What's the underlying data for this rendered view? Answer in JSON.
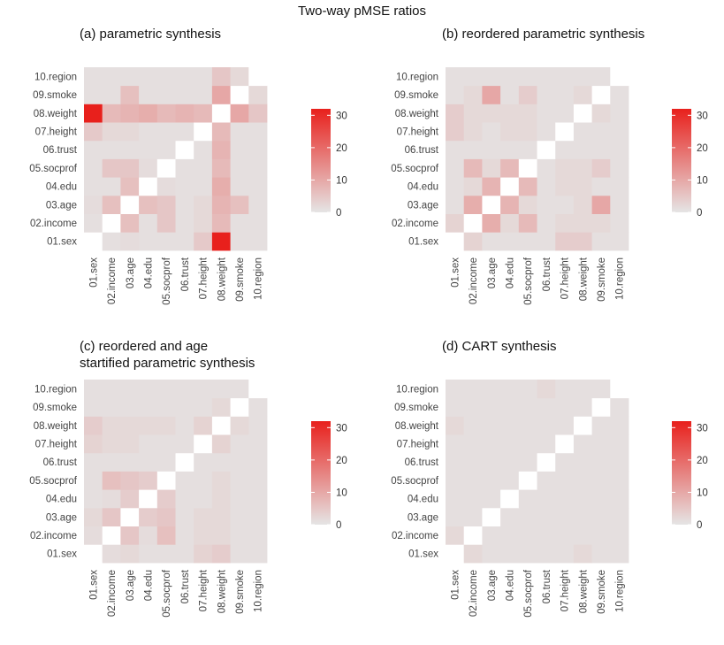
{
  "title": "Two-way pMSE ratios",
  "legend": {
    "ticks": [
      0,
      10,
      20,
      30
    ],
    "min": 0,
    "max": 32
  },
  "colors": {
    "low": "#e5e5e5",
    "high": "#e8201c",
    "diagonal": "#ffffff"
  },
  "chart_data": [
    {
      "type": "heatmap",
      "title": "(a) parametric synthesis",
      "variables": [
        "01.sex",
        "02.income",
        "03.age",
        "04.edu",
        "05.socprof",
        "06.trust",
        "07.height",
        "08.weight",
        "09.smoke",
        "10.region"
      ],
      "values": [
        [
          null,
          1,
          1.5,
          1,
          1,
          1,
          4.5,
          32,
          1,
          1
        ],
        [
          1,
          null,
          6,
          1,
          5,
          1,
          2,
          7,
          1,
          1
        ],
        [
          1.5,
          6,
          null,
          6,
          5,
          1,
          2,
          8,
          6,
          1
        ],
        [
          1,
          1,
          6,
          null,
          1.5,
          1,
          1,
          9,
          1,
          1
        ],
        [
          1,
          5,
          5,
          1.5,
          null,
          1,
          1,
          7,
          1,
          1
        ],
        [
          1,
          1,
          1,
          1,
          1,
          null,
          1,
          8,
          1,
          1
        ],
        [
          4.5,
          2,
          2,
          1,
          1,
          1,
          null,
          7,
          1,
          1
        ],
        [
          32,
          7,
          8,
          9,
          7,
          8,
          7,
          null,
          10,
          5
        ],
        [
          1,
          1,
          6,
          1,
          1,
          1,
          1,
          10,
          null,
          2
        ],
        [
          1,
          1,
          1,
          1,
          1,
          1,
          1,
          5,
          2,
          null
        ]
      ],
      "legend_title": ""
    },
    {
      "type": "heatmap",
      "title": "(b) reordered parametric synthesis",
      "variables": [
        "01.sex",
        "02.income",
        "03.age",
        "04.edu",
        "05.socprof",
        "06.trust",
        "07.height",
        "08.weight",
        "09.smoke",
        "10.region"
      ],
      "values": [
        [
          null,
          3,
          1,
          1,
          1,
          1,
          4,
          4,
          1,
          1
        ],
        [
          3,
          null,
          9,
          2,
          7,
          1,
          2,
          2,
          2,
          1
        ],
        [
          1,
          9,
          null,
          8,
          2,
          1,
          1,
          2,
          10,
          1
        ],
        [
          1,
          2,
          8,
          null,
          7,
          1,
          2,
          2,
          1,
          1
        ],
        [
          1,
          7,
          2,
          7,
          null,
          1,
          2,
          2,
          4,
          1
        ],
        [
          1,
          1,
          1,
          1,
          1,
          null,
          1,
          1,
          1,
          1
        ],
        [
          4,
          2,
          1,
          2,
          2,
          1,
          null,
          1,
          1,
          1
        ],
        [
          4,
          2,
          2,
          2,
          2,
          1,
          1,
          null,
          2,
          1
        ],
        [
          1,
          2,
          10,
          1,
          4,
          1,
          1,
          2,
          null,
          1
        ],
        [
          1,
          1,
          1,
          1,
          1,
          1,
          1,
          1,
          1,
          null
        ]
      ],
      "legend_title": ""
    },
    {
      "type": "heatmap",
      "title": "(c) reordered and age startified parametric synthesis",
      "variables": [
        "01.sex",
        "02.income",
        "03.age",
        "04.edu",
        "05.socprof",
        "06.trust",
        "07.height",
        "08.weight",
        "09.smoke",
        "10.region"
      ],
      "values": [
        [
          null,
          1.5,
          2,
          1,
          1,
          1,
          3,
          4,
          1,
          1
        ],
        [
          1.5,
          null,
          5,
          1.5,
          6,
          1,
          2,
          2,
          1,
          1
        ],
        [
          2,
          5,
          null,
          4,
          5,
          1,
          2,
          2,
          1,
          1
        ],
        [
          1,
          1.5,
          4,
          null,
          4,
          1,
          1,
          2,
          1,
          1
        ],
        [
          1,
          6,
          5,
          4,
          null,
          1,
          1,
          2,
          1,
          1
        ],
        [
          1,
          1,
          1,
          1,
          1,
          null,
          1,
          1,
          1,
          1
        ],
        [
          3,
          2,
          2,
          1,
          1,
          1,
          null,
          3,
          1,
          1
        ],
        [
          4,
          2,
          2,
          2,
          2,
          1,
          3,
          null,
          2,
          1
        ],
        [
          1,
          1,
          1,
          1,
          1,
          1,
          1,
          2,
          null,
          1
        ],
        [
          1,
          1,
          1,
          1,
          1,
          1,
          1,
          1,
          1,
          null
        ]
      ],
      "legend_title": ""
    },
    {
      "type": "heatmap",
      "title": "(d) CART synthesis",
      "variables": [
        "01.sex",
        "02.income",
        "03.age",
        "04.edu",
        "05.socprof",
        "06.trust",
        "07.height",
        "08.weight",
        "09.smoke",
        "10.region"
      ],
      "values": [
        [
          null,
          2,
          1,
          1,
          1,
          1,
          1,
          2,
          1,
          1
        ],
        [
          2,
          null,
          1,
          1,
          1,
          1,
          1,
          1,
          1,
          1
        ],
        [
          1,
          1,
          null,
          1,
          1,
          1,
          1,
          1,
          1,
          1
        ],
        [
          1,
          1,
          1,
          null,
          1,
          1,
          1,
          1,
          1,
          1
        ],
        [
          1,
          1,
          1,
          1,
          null,
          1,
          1,
          1,
          1,
          1
        ],
        [
          1,
          1,
          1,
          1,
          1,
          null,
          1,
          1,
          1,
          1
        ],
        [
          1,
          1,
          1,
          1,
          1,
          1,
          null,
          1,
          1,
          1
        ],
        [
          2,
          1,
          1,
          1,
          1,
          1,
          1,
          null,
          1,
          1
        ],
        [
          1,
          1,
          1,
          1,
          1,
          1,
          1,
          1,
          null,
          1
        ],
        [
          1,
          1,
          1,
          1,
          1,
          2,
          1,
          1,
          1,
          null
        ]
      ],
      "legend_title": ""
    }
  ]
}
